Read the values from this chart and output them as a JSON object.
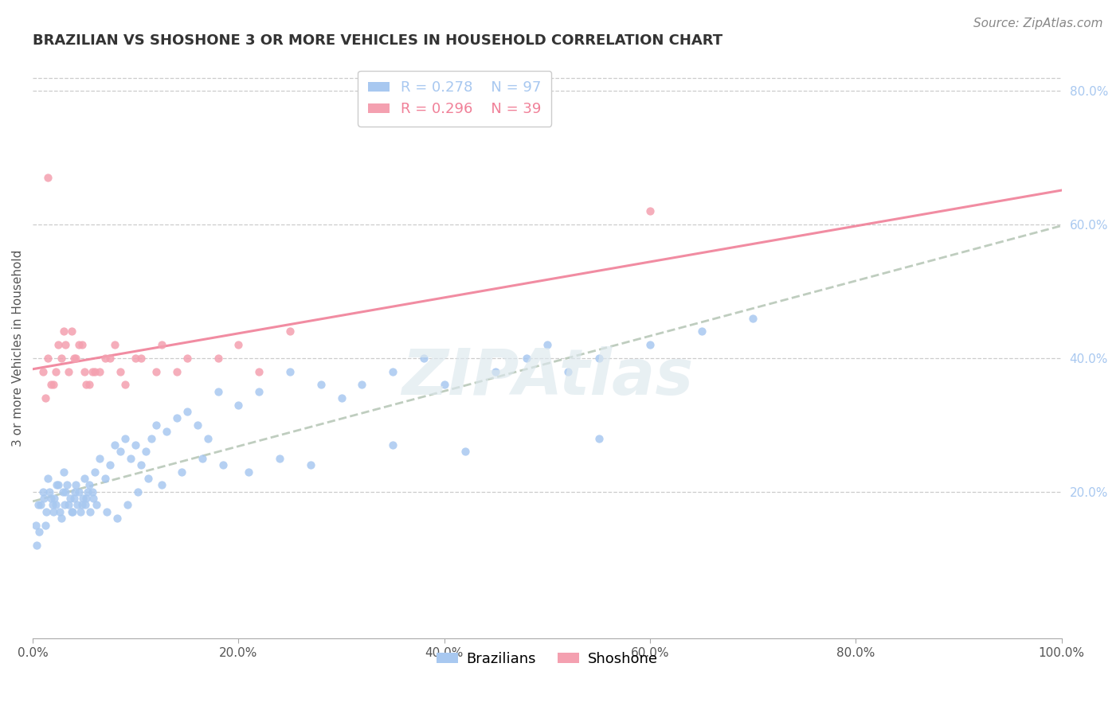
{
  "title": "BRAZILIAN VS SHOSHONE 3 OR MORE VEHICLES IN HOUSEHOLD CORRELATION CHART",
  "source": "Source: ZipAtlas.com",
  "ylabel": "3 or more Vehicles in Household",
  "xlim": [
    0,
    100
  ],
  "ylim": [
    -2,
    85
  ],
  "r_brazilian": 0.278,
  "n_brazilian": 97,
  "r_shoshone": 0.296,
  "n_shoshone": 39,
  "color_brazilian": "#a8c8f0",
  "color_shoshone": "#f4a0b0",
  "color_line_shoshone": "#f08098",
  "color_line_combined": "#b8c8b8",
  "ytick_labels": [
    "20.0%",
    "40.0%",
    "60.0%",
    "80.0%"
  ],
  "ytick_values": [
    20,
    40,
    60,
    80
  ],
  "xtick_labels": [
    "0.0%",
    "20.0%",
    "40.0%",
    "60.0%",
    "80.0%",
    "100.0%"
  ],
  "xtick_values": [
    0,
    20,
    40,
    60,
    80,
    100
  ],
  "watermark": "ZIPAtlas",
  "brazilian_x": [
    0.5,
    1.0,
    1.2,
    1.5,
    1.8,
    2.0,
    2.2,
    2.5,
    2.8,
    3.0,
    3.2,
    3.5,
    3.8,
    4.0,
    4.2,
    4.5,
    4.8,
    5.0,
    5.2,
    5.5,
    5.8,
    6.0,
    6.5,
    7.0,
    7.5,
    8.0,
    8.5,
    9.0,
    9.5,
    10.0,
    10.5,
    11.0,
    11.5,
    12.0,
    13.0,
    14.0,
    15.0,
    16.0,
    17.0,
    18.0,
    20.0,
    22.0,
    25.0,
    28.0,
    30.0,
    32.0,
    35.0,
    38.0,
    40.0,
    45.0,
    48.0,
    50.0,
    52.0,
    55.0,
    60.0,
    65.0,
    70.0,
    0.3,
    0.4,
    0.6,
    0.8,
    1.1,
    1.3,
    1.6,
    1.9,
    2.1,
    2.3,
    2.6,
    2.9,
    3.1,
    3.3,
    3.6,
    3.9,
    4.1,
    4.3,
    4.6,
    4.9,
    5.1,
    5.3,
    5.6,
    5.9,
    6.2,
    7.2,
    8.2,
    9.2,
    10.2,
    11.2,
    12.5,
    14.5,
    16.5,
    18.5,
    21.0,
    24.0,
    27.0,
    35.0,
    42.0,
    55.0
  ],
  "brazilian_y": [
    18,
    20,
    15,
    22,
    19,
    17,
    18,
    21,
    16,
    23,
    20,
    18,
    17,
    19,
    21,
    20,
    18,
    22,
    19,
    21,
    20,
    23,
    25,
    22,
    24,
    27,
    26,
    28,
    25,
    27,
    24,
    26,
    28,
    30,
    29,
    31,
    32,
    30,
    28,
    35,
    33,
    35,
    38,
    36,
    34,
    36,
    38,
    40,
    36,
    38,
    40,
    42,
    38,
    40,
    42,
    44,
    46,
    15,
    12,
    14,
    18,
    19,
    17,
    20,
    18,
    19,
    21,
    17,
    20,
    18,
    21,
    19,
    17,
    20,
    18,
    17,
    19,
    18,
    20,
    17,
    19,
    18,
    17,
    16,
    18,
    20,
    22,
    21,
    23,
    25,
    24,
    23,
    25,
    24,
    27,
    26,
    28
  ],
  "shoshone_x": [
    1.5,
    1.0,
    1.5,
    2.0,
    2.5,
    3.0,
    3.5,
    4.0,
    4.5,
    5.0,
    5.5,
    6.0,
    7.0,
    8.0,
    9.0,
    10.0,
    12.0,
    15.0,
    20.0,
    25.0,
    1.2,
    1.8,
    2.2,
    2.8,
    3.2,
    3.8,
    4.2,
    4.8,
    5.2,
    5.8,
    6.5,
    7.5,
    8.5,
    10.5,
    12.5,
    14.0,
    18.0,
    22.0,
    60.0
  ],
  "shoshone_y": [
    67,
    38,
    40,
    36,
    42,
    44,
    38,
    40,
    42,
    38,
    36,
    38,
    40,
    42,
    36,
    40,
    38,
    40,
    42,
    44,
    34,
    36,
    38,
    40,
    42,
    44,
    40,
    42,
    36,
    38,
    38,
    40,
    38,
    40,
    42,
    38,
    40,
    38,
    62
  ],
  "title_fontsize": 13,
  "label_fontsize": 11,
  "tick_fontsize": 11,
  "legend_fontsize": 13,
  "source_fontsize": 11
}
